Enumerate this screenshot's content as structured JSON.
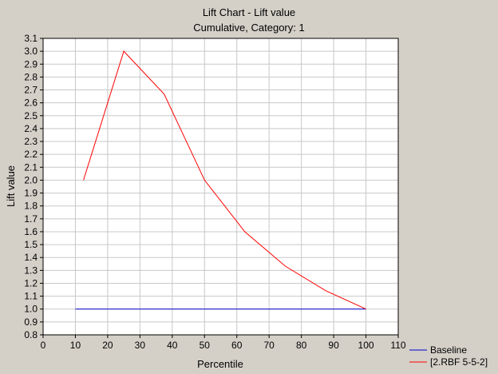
{
  "chart_data": {
    "type": "line",
    "title": "Lift Chart - Lift value",
    "subtitle": "Cumulative, Category: 1",
    "xlabel": "Percentile",
    "ylabel": "Lift value",
    "xlim": [
      0,
      110
    ],
    "ylim": [
      0.8,
      3.1
    ],
    "x_ticks": [
      0,
      10,
      20,
      30,
      40,
      50,
      60,
      70,
      80,
      90,
      100,
      110
    ],
    "y_ticks": [
      0.8,
      0.9,
      1.0,
      1.1,
      1.2,
      1.3,
      1.4,
      1.5,
      1.6,
      1.7,
      1.8,
      1.9,
      2.0,
      2.1,
      2.2,
      2.3,
      2.4,
      2.5,
      2.6,
      2.7,
      2.8,
      2.9,
      3.0,
      3.1
    ],
    "grid": true,
    "legend_position": "bottom-right",
    "series": [
      {
        "name": "Baseline",
        "color": "#0000cc",
        "x": [
          10,
          100
        ],
        "y": [
          1.0,
          1.0
        ]
      },
      {
        "name": "[2.RBF 5-5-2]",
        "color": "#ff0000",
        "x": [
          12.5,
          25,
          37.5,
          50,
          62.5,
          75,
          87.5,
          100
        ],
        "y": [
          2.0,
          3.0,
          2.667,
          2.0,
          1.6,
          1.333,
          1.143,
          1.0
        ]
      }
    ]
  }
}
